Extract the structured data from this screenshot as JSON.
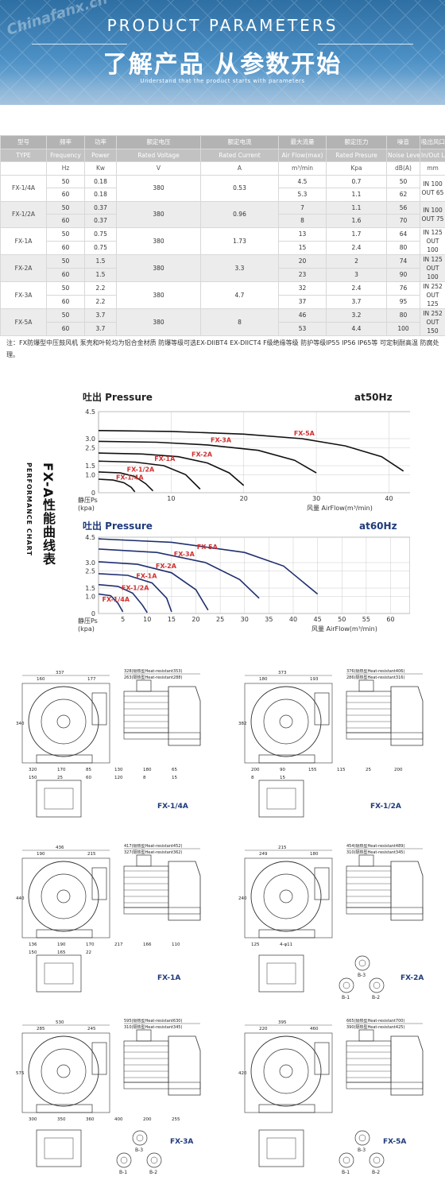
{
  "banner": {
    "watermark": "Chinafanx.cn",
    "title_en": "PRODUCT PARAMETERS",
    "title_zh": "了解产品 从参数开始",
    "subtitle": "Understand that the product starts with parameters"
  },
  "table": {
    "header_zh": [
      "型号",
      "频率",
      "功率",
      "额定电压",
      "额定电流",
      "最大流量",
      "额定压力",
      "噪音",
      "吸出风口 口径"
    ],
    "header_en": [
      "TYPE",
      "Frequency",
      "Power",
      "Rated Voltage",
      "Rated Current",
      "Air Flow(max)",
      "Rated Presure",
      "Noise Level",
      "In/Out Let"
    ],
    "units": [
      "",
      "Hz",
      "Kw",
      "V",
      "A",
      "m³/min",
      "Kpa",
      "dB(A)",
      "mm"
    ],
    "models": [
      {
        "type": "FX-1/4A",
        "voltage": "380",
        "current": "0.53",
        "port": [
          "IN 100",
          "OUT 65"
        ],
        "rows": [
          {
            "hz": "50",
            "kw": "0.18",
            "flow": "4.5",
            "press": "0.7",
            "noise": "50"
          },
          {
            "hz": "60",
            "kw": "0.18",
            "flow": "5.3",
            "press": "1.1",
            "noise": "62"
          }
        ]
      },
      {
        "type": "FX-1/2A",
        "voltage": "380",
        "current": "0.96",
        "port": [
          "IN 100",
          "OUT 75"
        ],
        "rows": [
          {
            "hz": "50",
            "kw": "0.37",
            "flow": "7",
            "press": "1.1",
            "noise": "56"
          },
          {
            "hz": "60",
            "kw": "0.37",
            "flow": "8",
            "press": "1.6",
            "noise": "70"
          }
        ]
      },
      {
        "type": "FX-1A",
        "voltage": "380",
        "current": "1.73",
        "port": [
          "IN 125",
          "OUT 100"
        ],
        "rows": [
          {
            "hz": "50",
            "kw": "0.75",
            "flow": "13",
            "press": "1.7",
            "noise": "64"
          },
          {
            "hz": "60",
            "kw": "0.75",
            "flow": "15",
            "press": "2.4",
            "noise": "80"
          }
        ]
      },
      {
        "type": "FX-2A",
        "voltage": "380",
        "current": "3.3",
        "port": [
          "IN 125",
          "OUT 100"
        ],
        "rows": [
          {
            "hz": "50",
            "kw": "1.5",
            "flow": "20",
            "press": "2",
            "noise": "74"
          },
          {
            "hz": "60",
            "kw": "1.5",
            "flow": "23",
            "press": "3",
            "noise": "90"
          }
        ]
      },
      {
        "type": "FX-3A",
        "voltage": "380",
        "current": "4.7",
        "port": [
          "IN 252",
          "OUT 125"
        ],
        "rows": [
          {
            "hz": "50",
            "kw": "2.2",
            "flow": "32",
            "press": "2.4",
            "noise": "76"
          },
          {
            "hz": "60",
            "kw": "2.2",
            "flow": "37",
            "press": "3.7",
            "noise": "95"
          }
        ]
      },
      {
        "type": "FX-5A",
        "voltage": "380",
        "current": "8",
        "port": [
          "IN 252",
          "OUT 150"
        ],
        "rows": [
          {
            "hz": "50",
            "kw": "3.7",
            "flow": "46",
            "press": "3.2",
            "noise": "80"
          },
          {
            "hz": "60",
            "kw": "3.7",
            "flow": "53",
            "press": "4.4",
            "noise": "100"
          }
        ]
      }
    ],
    "note": "注：FX防爆型中压鼓风机 泵壳和叶轮均为铝合金材质 防爆等级可选EX-DIIBT4 EX-DIICT4  F级绝缘等级  防护等级IP55 IP56  IP65等 可定制耐高温 防腐处理。"
  },
  "perf": {
    "side_title_zh": "FX-A性能曲线表",
    "side_title_en": "PERFORMANCE CHART"
  },
  "chart_data": [
    {
      "type": "line",
      "title": "吐出 Pressure",
      "freq_label": "at50Hz",
      "ylabel": "静压Ps (kpa)",
      "xlabel": "风量 AirFlow(m³/min)",
      "yticks": [
        "4.5",
        "3.0",
        "2.5",
        "1.5",
        "1.0",
        "0"
      ],
      "xticks": [
        "10",
        "20",
        "30",
        "40"
      ],
      "xlim": [
        0,
        44
      ],
      "ylim": [
        0,
        4.5
      ],
      "series": [
        {
          "name": "FX-5A",
          "x": [
            0,
            10,
            20,
            28,
            34,
            39,
            42
          ],
          "y": [
            3.45,
            3.4,
            3.25,
            3.0,
            2.6,
            2.0,
            1.2
          ]
        },
        {
          "name": "FX-3A",
          "x": [
            0,
            8,
            15,
            22,
            27,
            30
          ],
          "y": [
            2.85,
            2.8,
            2.65,
            2.35,
            1.8,
            1.1
          ]
        },
        {
          "name": "FX-2A",
          "x": [
            0,
            6,
            11,
            15,
            18,
            20
          ],
          "y": [
            2.2,
            2.15,
            2.0,
            1.65,
            1.1,
            0.4
          ]
        },
        {
          "name": "FX-1A",
          "x": [
            0,
            5,
            9,
            12,
            14
          ],
          "y": [
            1.75,
            1.7,
            1.5,
            1.0,
            0.2
          ]
        },
        {
          "name": "FX-1/2A",
          "x": [
            0,
            3,
            5,
            6.5,
            7.5
          ],
          "y": [
            1.15,
            1.1,
            0.9,
            0.5,
            0.1
          ]
        },
        {
          "name": "FX-1/4A",
          "x": [
            0,
            2,
            3.5,
            4.5,
            5
          ],
          "y": [
            0.75,
            0.7,
            0.55,
            0.3,
            0.05
          ]
        }
      ]
    },
    {
      "type": "line",
      "title": "吐出 Pressure",
      "freq_label": "at60Hz",
      "ylabel": "静压Ps (kpa)",
      "xlabel": "风量 AirFlow(m³/min)",
      "yticks": [
        "4.5",
        "3.0",
        "2.5",
        "1.5",
        "1.0",
        "0"
      ],
      "xticks": [
        "5",
        "10",
        "15",
        "20",
        "25",
        "30",
        "35",
        "40",
        "45",
        "50",
        "55",
        "60"
      ],
      "xlim": [
        0,
        64
      ],
      "ylim": [
        0,
        4.5
      ],
      "series": [
        {
          "name": "FX-5A",
          "x": [
            0,
            15,
            30,
            38,
            45
          ],
          "y": [
            4.4,
            4.2,
            3.6,
            2.8,
            1.15
          ]
        },
        {
          "name": "FX-3A",
          "x": [
            0,
            12,
            22,
            29,
            33
          ],
          "y": [
            3.8,
            3.6,
            3.0,
            2.0,
            0.9
          ]
        },
        {
          "name": "FX-2A",
          "x": [
            0,
            8,
            15,
            20,
            22.5
          ],
          "y": [
            3.05,
            2.9,
            2.4,
            1.4,
            0.2
          ]
        },
        {
          "name": "FX-1A",
          "x": [
            0,
            6,
            11,
            14,
            15
          ],
          "y": [
            2.35,
            2.25,
            1.8,
            0.9,
            0.1
          ]
        },
        {
          "name": "FX-1/2A",
          "x": [
            0,
            4,
            7,
            9,
            10
          ],
          "y": [
            1.7,
            1.6,
            1.2,
            0.5,
            0.05
          ]
        },
        {
          "name": "FX-1/4A",
          "x": [
            0,
            2.5,
            4,
            5
          ],
          "y": [
            1.15,
            1.05,
            0.6,
            0.1
          ]
        }
      ]
    }
  ],
  "drawings": [
    {
      "label": "FX-1/4A",
      "dims": [
        "337",
        "160",
        "177",
        "340",
        "320",
        "170",
        "85",
        "130",
        "180",
        "65",
        "150",
        "25",
        "60",
        "120",
        "8",
        "15"
      ],
      "side": [
        "328(隔热型Heat-resistant353)",
        "263(隔热型Heat-resistant288)"
      ]
    },
    {
      "label": "FX-1/2A",
      "dims": [
        "373",
        "180",
        "193",
        "382",
        "200",
        "90",
        "155",
        "115",
        "25",
        "200",
        "8",
        "15"
      ],
      "side": [
        "376(隔热型Heat-resistant406)",
        "286(隔热型Heat-resistant316)"
      ]
    },
    {
      "label": "FX-1A",
      "dims": [
        "436",
        "190",
        "215",
        "440",
        "136",
        "190",
        "170",
        "217",
        "166",
        "110",
        "150",
        "165",
        "22"
      ],
      "side": [
        "417(隔热型Heat-resistant452)",
        "327(隔热型Heat-resistant362)"
      ]
    },
    {
      "label": "FX-2A",
      "dims": [
        "215",
        "249",
        "180",
        "240",
        "125",
        "4-φ11"
      ],
      "side": [
        "454(隔热型Heat-resistant489)",
        "310(隔热型Heat-resistant345)"
      ],
      "views": [
        "B-3",
        "B-1",
        "B-2"
      ]
    },
    {
      "label": "FX-3A",
      "dims": [
        "530",
        "285",
        "245",
        "575",
        "300",
        "350",
        "360",
        "400",
        "200",
        "255"
      ],
      "side": [
        "595(隔热型Heat-resistant630)",
        "310(隔热型Heat-resistant345)"
      ],
      "views": [
        "B-3",
        "B-1",
        "B-2"
      ]
    },
    {
      "label": "FX-5A",
      "dims": [
        "395",
        "220",
        "460",
        "420"
      ],
      "side": [
        "665(隔热型Heat-resistant700)",
        "390(隔热型Heat-resistant425)"
      ],
      "views": [
        "B-3",
        "B-1",
        "B-2"
      ]
    }
  ]
}
